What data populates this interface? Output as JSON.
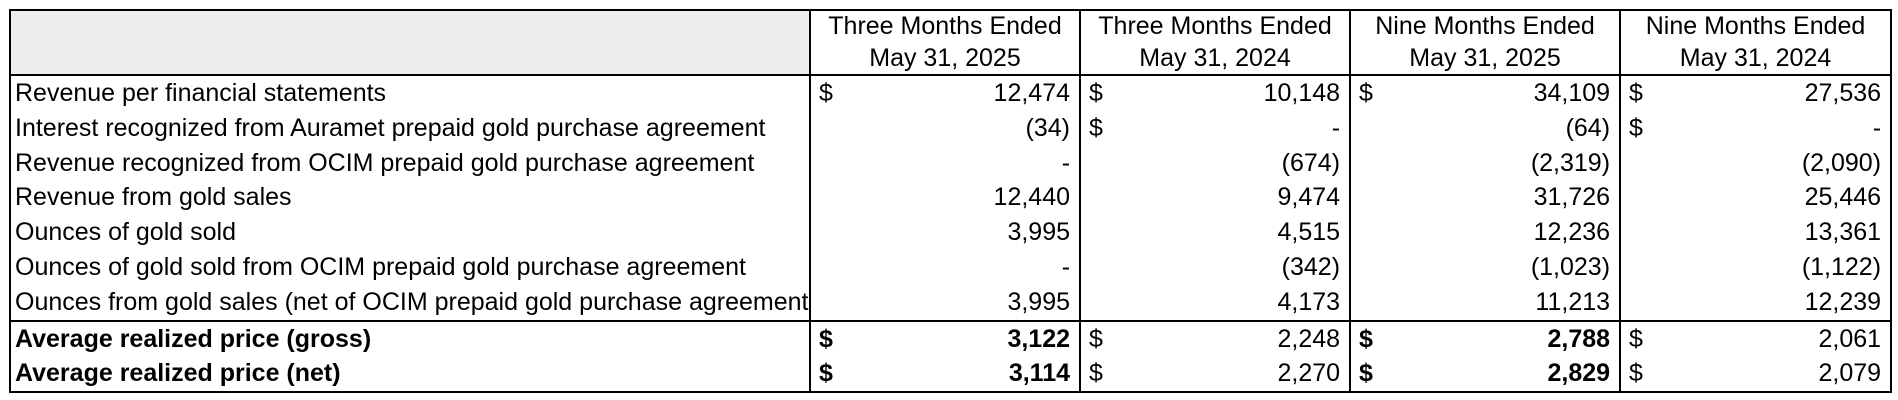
{
  "headers": [
    {
      "line1": "Three Months Ended",
      "line2": "May 31, 2025"
    },
    {
      "line1": "Three Months Ended",
      "line2": "May 31, 2024"
    },
    {
      "line1": "Nine Months Ended",
      "line2": "May 31, 2025"
    },
    {
      "line1": "Nine Months Ended",
      "line2": "May 31, 2024"
    }
  ],
  "rows": [
    {
      "label": "Revenue per financial statements",
      "cells": [
        {
          "d": "$",
          "v": "12,474"
        },
        {
          "d": "$",
          "v": "10,148"
        },
        {
          "d": "$",
          "v": "34,109"
        },
        {
          "d": "$",
          "v": "27,536"
        }
      ]
    },
    {
      "label": "Interest recognized from Auramet prepaid gold purchase agreement",
      "cells": [
        {
          "d": "",
          "v": "(34)"
        },
        {
          "d": "$",
          "v": "-"
        },
        {
          "d": "",
          "v": "(64)"
        },
        {
          "d": "$",
          "v": "-"
        }
      ]
    },
    {
      "label": "Revenue recognized from OCIM prepaid gold purchase agreement",
      "cells": [
        {
          "d": "",
          "v": "-"
        },
        {
          "d": "",
          "v": "(674)"
        },
        {
          "d": "",
          "v": "(2,319)"
        },
        {
          "d": "",
          "v": "(2,090)"
        }
      ]
    },
    {
      "label": "Revenue from gold sales",
      "cells": [
        {
          "d": "",
          "v": "12,440"
        },
        {
          "d": "",
          "v": "9,474"
        },
        {
          "d": "",
          "v": "31,726"
        },
        {
          "d": "",
          "v": "25,446"
        }
      ]
    },
    {
      "label": "Ounces of gold sold",
      "cells": [
        {
          "d": "",
          "v": "3,995"
        },
        {
          "d": "",
          "v": "4,515"
        },
        {
          "d": "",
          "v": "12,236"
        },
        {
          "d": "",
          "v": "13,361"
        }
      ]
    },
    {
      "label": "Ounces of gold sold from OCIM prepaid gold purchase agreement",
      "cells": [
        {
          "d": "",
          "v": "-"
        },
        {
          "d": "",
          "v": "(342)"
        },
        {
          "d": "",
          "v": "(1,023)"
        },
        {
          "d": "",
          "v": "(1,122)"
        }
      ]
    },
    {
      "label": "Ounces from gold sales (net of OCIM prepaid gold purchase agreement)",
      "cells": [
        {
          "d": "",
          "v": "3,995"
        },
        {
          "d": "",
          "v": "4,173"
        },
        {
          "d": "",
          "v": "11,213"
        },
        {
          "d": "",
          "v": "12,239"
        }
      ]
    },
    {
      "label": "Average realized price (gross)",
      "cells": [
        {
          "d": "$",
          "v": "3,122"
        },
        {
          "d": "$",
          "v": "2,248"
        },
        {
          "d": "$",
          "v": "2,788"
        },
        {
          "d": "$",
          "v": "2,061"
        }
      ]
    },
    {
      "label": "Average realized price (net)",
      "cells": [
        {
          "d": "$",
          "v": "3,114"
        },
        {
          "d": "$",
          "v": "2,270"
        },
        {
          "d": "$",
          "v": "2,829"
        },
        {
          "d": "$",
          "v": "2,079"
        }
      ]
    }
  ]
}
